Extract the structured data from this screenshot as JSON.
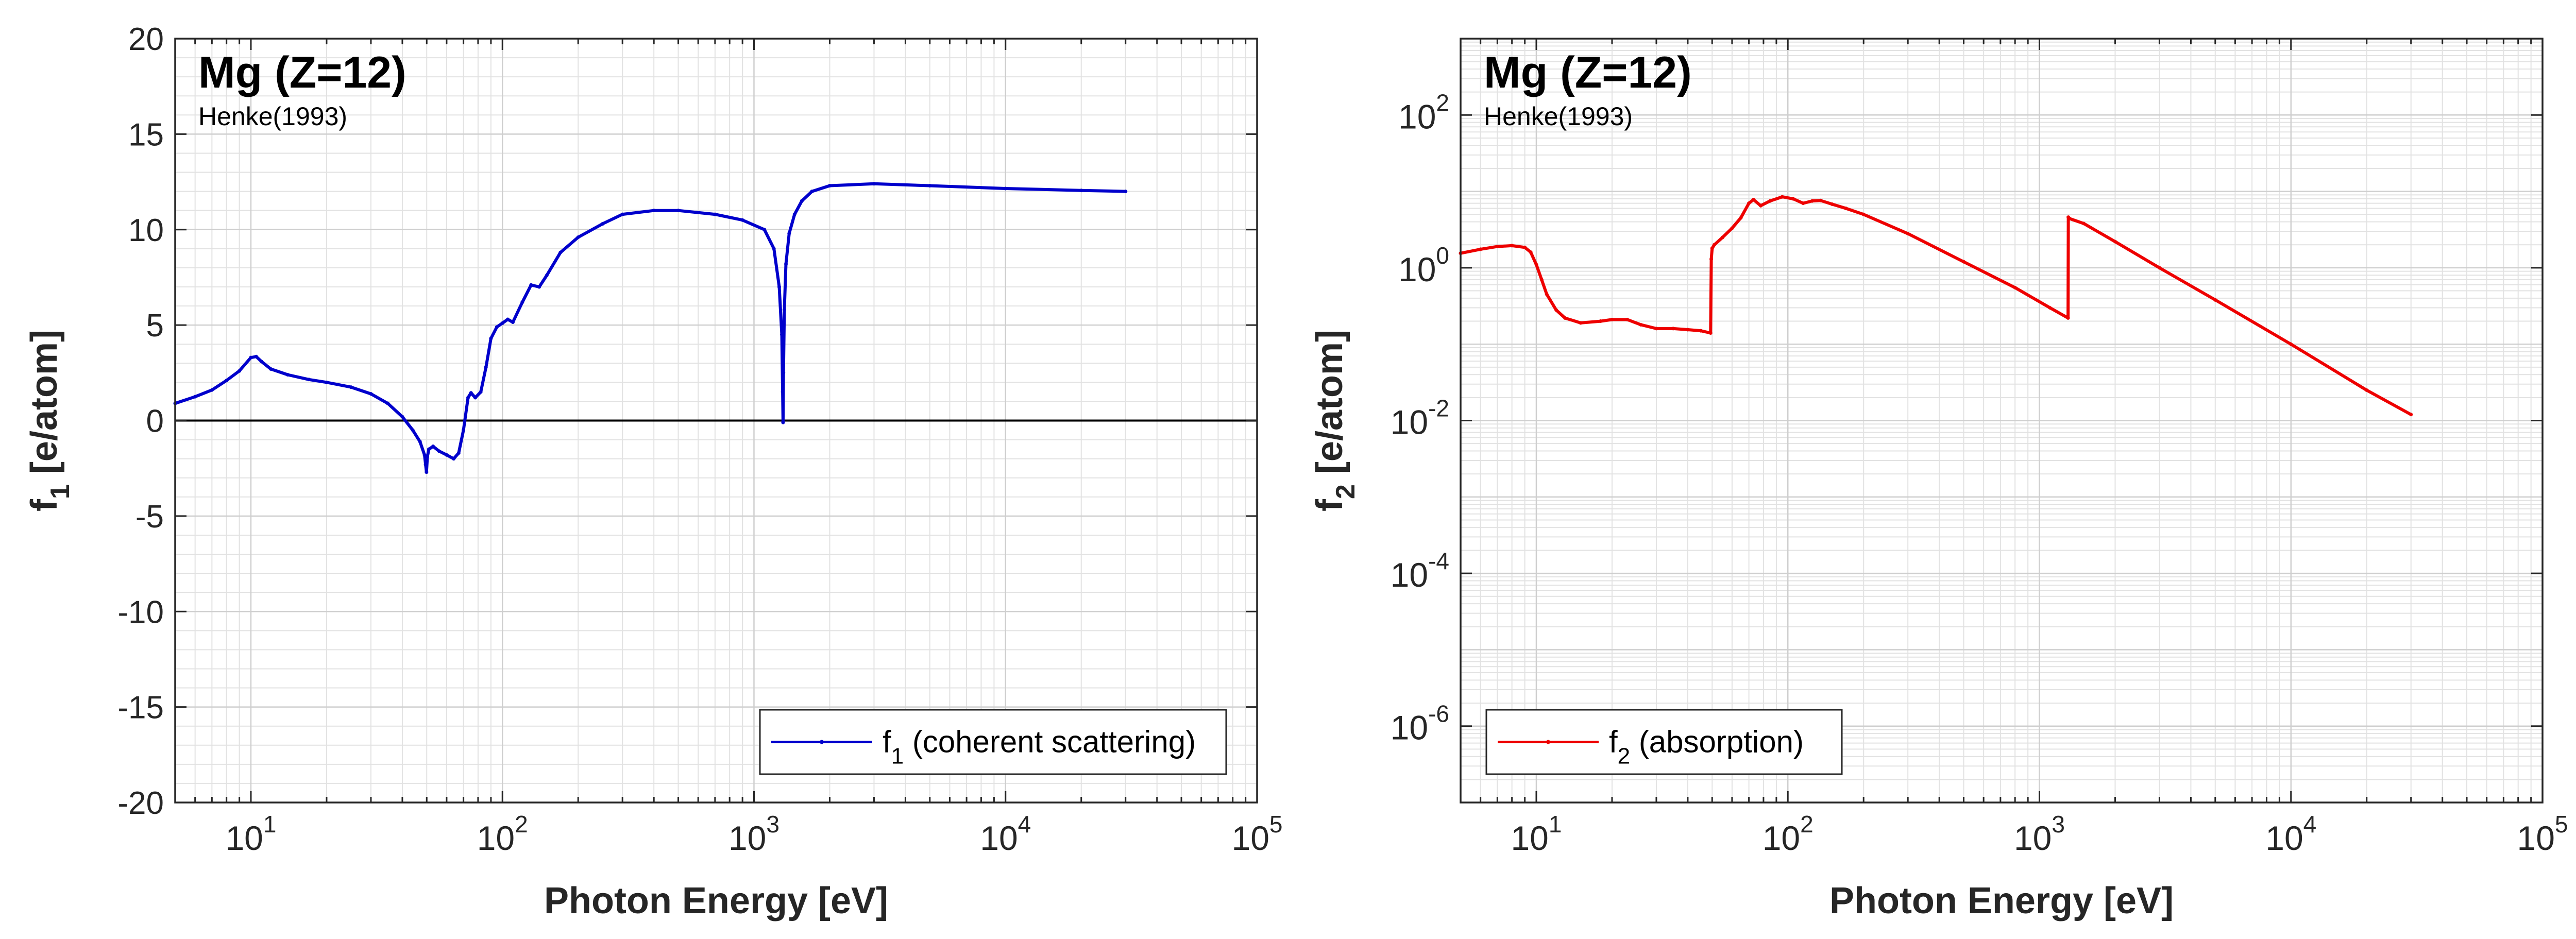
{
  "chart_data": [
    {
      "type": "line",
      "title": "Mg (Z=12)",
      "subtitle": "Henke(1993)",
      "xlabel": "Photon Energy [eV]",
      "ylabel": {
        "base": "f",
        "sub": "1",
        "rest": " [e/atom]"
      },
      "xscale": "log",
      "yscale": "linear",
      "xlim": [
        5,
        100000
      ],
      "ylim": [
        -20,
        20
      ],
      "grid": true,
      "legend_position": "bottom-right",
      "xticks": [
        {
          "base": "10",
          "exp": "1",
          "value": 10
        },
        {
          "base": "10",
          "exp": "2",
          "value": 100
        },
        {
          "base": "10",
          "exp": "3",
          "value": 1000
        },
        {
          "base": "10",
          "exp": "4",
          "value": 10000
        },
        {
          "base": "10",
          "exp": "5",
          "value": 100000
        }
      ],
      "yticks": [
        {
          "label": "-20",
          "value": -20
        },
        {
          "label": "-15",
          "value": -15
        },
        {
          "label": "-10",
          "value": -10
        },
        {
          "label": "-5",
          "value": -5
        },
        {
          "label": "0",
          "value": 0
        },
        {
          "label": "5",
          "value": 5
        },
        {
          "label": "10",
          "value": 10
        },
        {
          "label": "15",
          "value": 15
        },
        {
          "label": "20",
          "value": 20
        }
      ],
      "zero_line": true,
      "series": [
        {
          "name": {
            "base": "f",
            "sub": "1",
            "rest": " (coherent scattering)"
          },
          "color": "#0000cc",
          "x": [
            5,
            6,
            7,
            8,
            9,
            10,
            10.5,
            11,
            12,
            14,
            17,
            20,
            25,
            30,
            35,
            40,
            44,
            47,
            49,
            49.5,
            49.9,
            50.3,
            51,
            53,
            56,
            60,
            64,
            67,
            70,
            73,
            75,
            78,
            82,
            86,
            90,
            95,
            100,
            105,
            110,
            120,
            130,
            140,
            150,
            170,
            200,
            250,
            300,
            400,
            500,
            700,
            900,
            1100,
            1200,
            1260,
            1290,
            1300,
            1305,
            1310,
            1320,
            1340,
            1380,
            1450,
            1550,
            1700,
            2000,
            3000,
            5000,
            10000,
            20000,
            30000
          ],
          "y": [
            0.9,
            1.25,
            1.6,
            2.1,
            2.6,
            3.3,
            3.35,
            3.1,
            2.7,
            2.4,
            2.15,
            2.0,
            1.75,
            1.4,
            0.9,
            0.2,
            -0.5,
            -1.1,
            -1.8,
            -2.3,
            -2.7,
            -1.9,
            -1.5,
            -1.35,
            -1.6,
            -1.8,
            -2.0,
            -1.7,
            -0.5,
            1.2,
            1.45,
            1.2,
            1.5,
            2.8,
            4.3,
            4.9,
            5.1,
            5.3,
            5.15,
            6.2,
            7.1,
            7.0,
            7.6,
            8.8,
            9.6,
            10.3,
            10.8,
            11.0,
            11.0,
            10.8,
            10.5,
            10.0,
            9.0,
            7.0,
            4.5,
            1.5,
            -0.1,
            2.5,
            5.8,
            8.2,
            9.8,
            10.8,
            11.5,
            12.0,
            12.3,
            12.4,
            12.3,
            12.15,
            12.05,
            12.0
          ]
        }
      ]
    },
    {
      "type": "line",
      "title": "Mg (Z=12)",
      "subtitle": "Henke(1993)",
      "xlabel": "Photon Energy [eV]",
      "ylabel": {
        "base": "f",
        "sub": "2",
        "rest": " [e/atom]"
      },
      "xscale": "log",
      "yscale": "log",
      "xlim": [
        5,
        100000
      ],
      "ylim": [
        1e-07,
        1000
      ],
      "grid": true,
      "legend_position": "bottom-left",
      "xticks": [
        {
          "base": "10",
          "exp": "1",
          "value": 10
        },
        {
          "base": "10",
          "exp": "2",
          "value": 100
        },
        {
          "base": "10",
          "exp": "3",
          "value": 1000
        },
        {
          "base": "10",
          "exp": "4",
          "value": 10000
        },
        {
          "base": "10",
          "exp": "5",
          "value": 100000
        }
      ],
      "yticks": [
        {
          "base": "10",
          "exp": "-6",
          "value": 1e-06
        },
        {
          "base": "10",
          "exp": "-4",
          "value": 0.0001
        },
        {
          "base": "10",
          "exp": "-2",
          "value": 0.01
        },
        {
          "base": "10",
          "exp": "0",
          "value": 1
        },
        {
          "base": "10",
          "exp": "2",
          "value": 100
        }
      ],
      "series": [
        {
          "name": {
            "base": "f",
            "sub": "2",
            "rest": " (absorption)"
          },
          "color": "#ee0000",
          "x": [
            5,
            6,
            7,
            8,
            9,
            9.5,
            10,
            10.5,
            11,
            12,
            13,
            15,
            18,
            20,
            23,
            26,
            30,
            35,
            40,
            45,
            49.3,
            49.6,
            50,
            51,
            55,
            60,
            65,
            70,
            73,
            78,
            85,
            95,
            105,
            115,
            125,
            135,
            150,
            170,
            200,
            300,
            500,
            800,
            1100,
            1300,
            1303,
            1320,
            1500,
            2000,
            3000,
            5000,
            10000,
            20000,
            30000
          ],
          "y": [
            1.55,
            1.75,
            1.9,
            1.95,
            1.85,
            1.6,
            1.1,
            0.7,
            0.45,
            0.28,
            0.22,
            0.19,
            0.2,
            0.21,
            0.21,
            0.18,
            0.16,
            0.16,
            0.155,
            0.15,
            0.14,
            1.3,
            1.8,
            2.0,
            2.5,
            3.3,
            4.5,
            7.0,
            7.8,
            6.5,
            7.5,
            8.5,
            8.0,
            7.0,
            7.5,
            7.6,
            6.8,
            6.0,
            5.0,
            2.8,
            1.2,
            0.55,
            0.3,
            0.22,
            4.6,
            4.4,
            3.8,
            2.2,
            1.0,
            0.38,
            0.1,
            0.025,
            0.012
          ]
        }
      ]
    }
  ]
}
